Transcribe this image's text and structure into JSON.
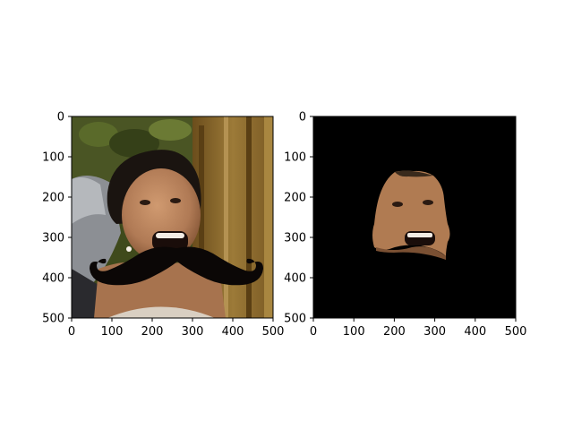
{
  "chart_data": [
    {
      "type": "image",
      "panel": "left",
      "description": "photo of smiling woman with overlaid black cartoon mustache",
      "xlim": [
        0,
        500
      ],
      "ylim": [
        500,
        0
      ],
      "xticks": [
        0,
        100,
        200,
        300,
        400,
        500
      ],
      "yticks": [
        0,
        100,
        200,
        300,
        400,
        500
      ],
      "xlabel": "",
      "ylabel": "",
      "title": ""
    },
    {
      "type": "image",
      "panel": "right",
      "description": "segmented face region on black background",
      "xlim": [
        0,
        500
      ],
      "ylim": [
        500,
        0
      ],
      "xticks": [
        0,
        100,
        200,
        300,
        400,
        500
      ],
      "yticks": [
        0,
        100,
        200,
        300,
        400,
        500
      ],
      "xlabel": "",
      "ylabel": "",
      "title": ""
    }
  ],
  "colors": {
    "background": "#ffffff",
    "mask_background": "#000000",
    "mustache": "#0b0706",
    "skin": "#b98460",
    "foliage": "#3f4a1c",
    "fence": "#8a6a2e"
  }
}
